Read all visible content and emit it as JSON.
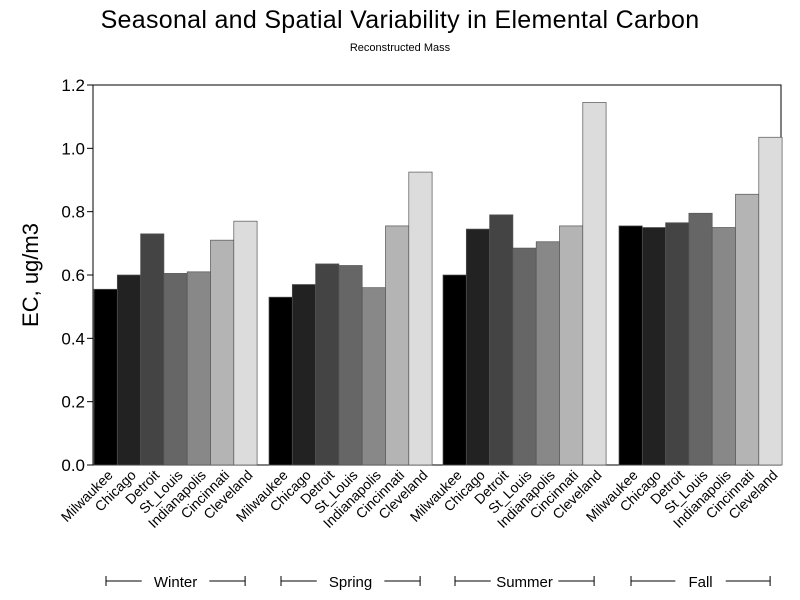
{
  "chart_data": {
    "type": "bar",
    "title": "Seasonal and Spatial Variability in Elemental Carbon",
    "subtitle": "Reconstructed Mass",
    "ylabel": "EC,  ug/m3",
    "xlabel": "",
    "ylim": [
      0,
      1.2
    ],
    "yticks": [
      "0.0",
      "0.2",
      "0.4",
      "0.6",
      "0.8",
      "1.0",
      "1.2"
    ],
    "grid": false,
    "legend": "none",
    "categories": [
      "Milwaukee",
      "Chicago",
      "Detroit",
      "St_Louis",
      "Indianapolis",
      "Cincinnati",
      "Cleveland"
    ],
    "category_colors": [
      "#000000",
      "#222222",
      "#444444",
      "#666666",
      "#888888",
      "#b4b4b4",
      "#dcdcdc"
    ],
    "groups": [
      {
        "name": "Winter",
        "values": [
          0.555,
          0.6,
          0.73,
          0.605,
          0.61,
          0.71,
          0.77
        ]
      },
      {
        "name": "Spring",
        "values": [
          0.53,
          0.57,
          0.635,
          0.63,
          0.56,
          0.755,
          0.925
        ]
      },
      {
        "name": "Summer",
        "values": [
          0.6,
          0.745,
          0.79,
          0.685,
          0.705,
          0.755,
          1.145
        ]
      },
      {
        "name": "Fall",
        "values": [
          0.755,
          0.75,
          0.765,
          0.795,
          0.75,
          0.855,
          1.035
        ]
      }
    ]
  }
}
